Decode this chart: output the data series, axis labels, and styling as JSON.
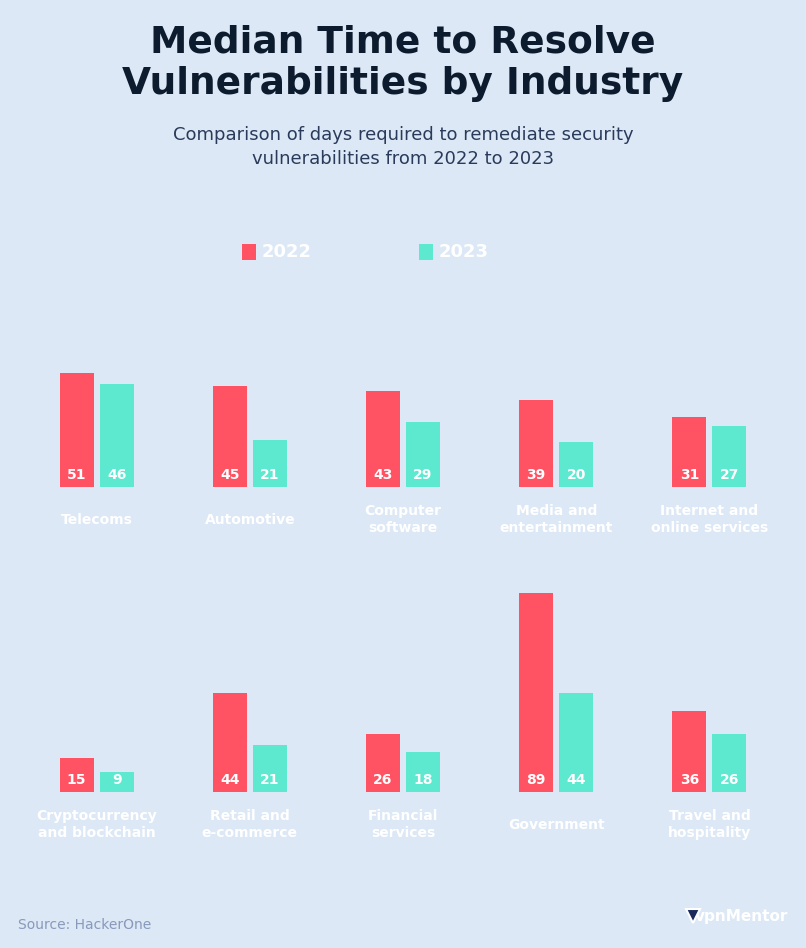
{
  "title": "Median Time to Resolve\nVulnerabilities by Industry",
  "subtitle": "Comparison of days required to remediate security\nvulnerabilities from 2022 to 2023",
  "source": "Source: HackerOne",
  "header_bg": "#dce8f5",
  "body_bg": "#0d1b2e",
  "bar_color_2022": "#ff5263",
  "bar_color_2023": "#5de8d0",
  "title_color": "#0d1b2e",
  "subtitle_color": "#2a3a5a",
  "text_color": "#ffffff",
  "source_color": "#8899bb",
  "row1": {
    "industries": [
      "Telecoms",
      "Automotive",
      "Computer\nsoftware",
      "Media and\nentertainment",
      "Internet and\nonline services"
    ],
    "values_2022": [
      51,
      45,
      43,
      39,
      31
    ],
    "values_2023": [
      46,
      21,
      29,
      20,
      27
    ]
  },
  "row2": {
    "industries": [
      "Cryptocurrency\nand blockchain",
      "Retail and\ne-commerce",
      "Financial\nservices",
      "Government",
      "Travel and\nhospitality"
    ],
    "values_2022": [
      15,
      44,
      26,
      89,
      36
    ],
    "values_2023": [
      9,
      21,
      18,
      44,
      26
    ]
  },
  "legend_2022": "2022",
  "legend_2023": "2023",
  "title_fontsize": 27,
  "subtitle_fontsize": 13,
  "legend_fontsize": 13,
  "source_fontsize": 10,
  "global_max": 95
}
